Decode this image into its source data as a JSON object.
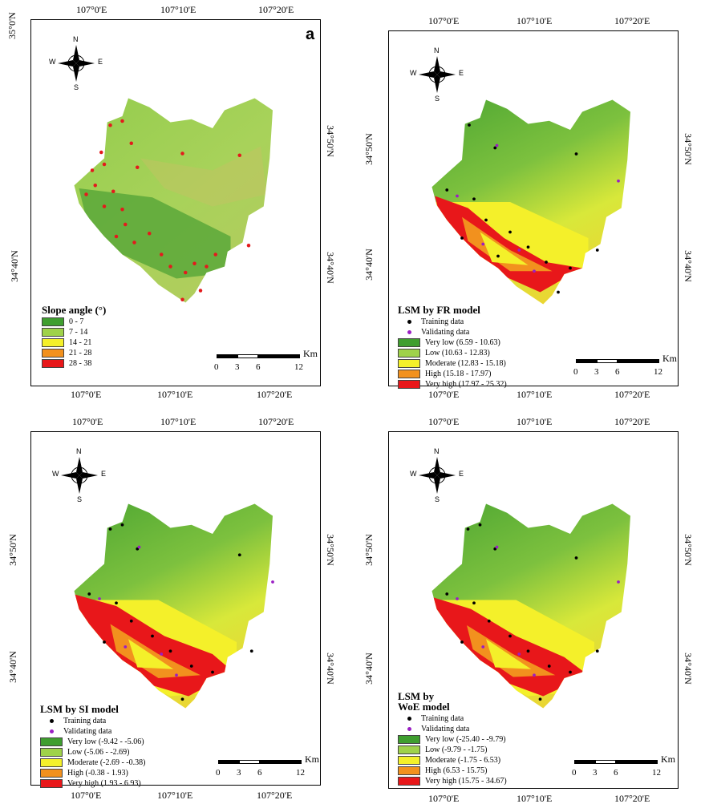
{
  "colors": {
    "very_low": "#3f9e2f",
    "low": "#9fd24a",
    "moderate": "#f4f02a",
    "high": "#f2911e",
    "very_high": "#e8171a",
    "training": "#000000",
    "validating": "#9a1fc4",
    "landslide": "#e31a1c"
  },
  "coords": {
    "lon": [
      "107°0'E",
      "107°10'E",
      "107°20'E"
    ],
    "lat_top": "35°0'N",
    "lat_mid": "34°50'N",
    "lat_low": "34°40'N"
  },
  "compass": {
    "n": "N",
    "s": "S",
    "e": "E",
    "w": "W"
  },
  "scalebar": {
    "unit": "Km",
    "labels": [
      "0",
      "3",
      "6",
      "12"
    ]
  },
  "panels": {
    "a": {
      "letter": "a",
      "legend_title": "Slope angle (°)",
      "classes": [
        "0 - 7",
        "7 - 14",
        "14 - 21",
        "21 - 28",
        "28 - 38"
      ]
    },
    "fr": {
      "legend_title": "LSM by FR model",
      "training": "Training data",
      "validating": "Validating data",
      "classes": [
        "Very low (6.59 - 10.63)",
        "Low (10.63 - 12.83)",
        "Moderate (12.83 - 15.18)",
        "High (15.18 - 17.97)",
        "Very high (17.97 - 25.32)"
      ]
    },
    "si": {
      "legend_title": "LSM by SI model",
      "training": "Training data",
      "validating": "Validating data",
      "classes": [
        "Very low (-9.42 - -5.06)",
        "Low (-5.06 - -2.69)",
        "Moderate (-2.69 - -0.38)",
        "High (-0.38 - 1.93)",
        "Very high (1.93 - 6.93)"
      ]
    },
    "woe": {
      "legend_title_1": "LSM by",
      "legend_title_2": "WoE model",
      "training": "Training data",
      "validating": "Validating data",
      "classes": [
        "Very low (-25.40 - -9.79)",
        "Low (-9.79 - -1.75)",
        "Moderate (-1.75 - 6.53)",
        "High (6.53 - 15.75)",
        "Very high (15.75 - 34.67)"
      ]
    }
  }
}
